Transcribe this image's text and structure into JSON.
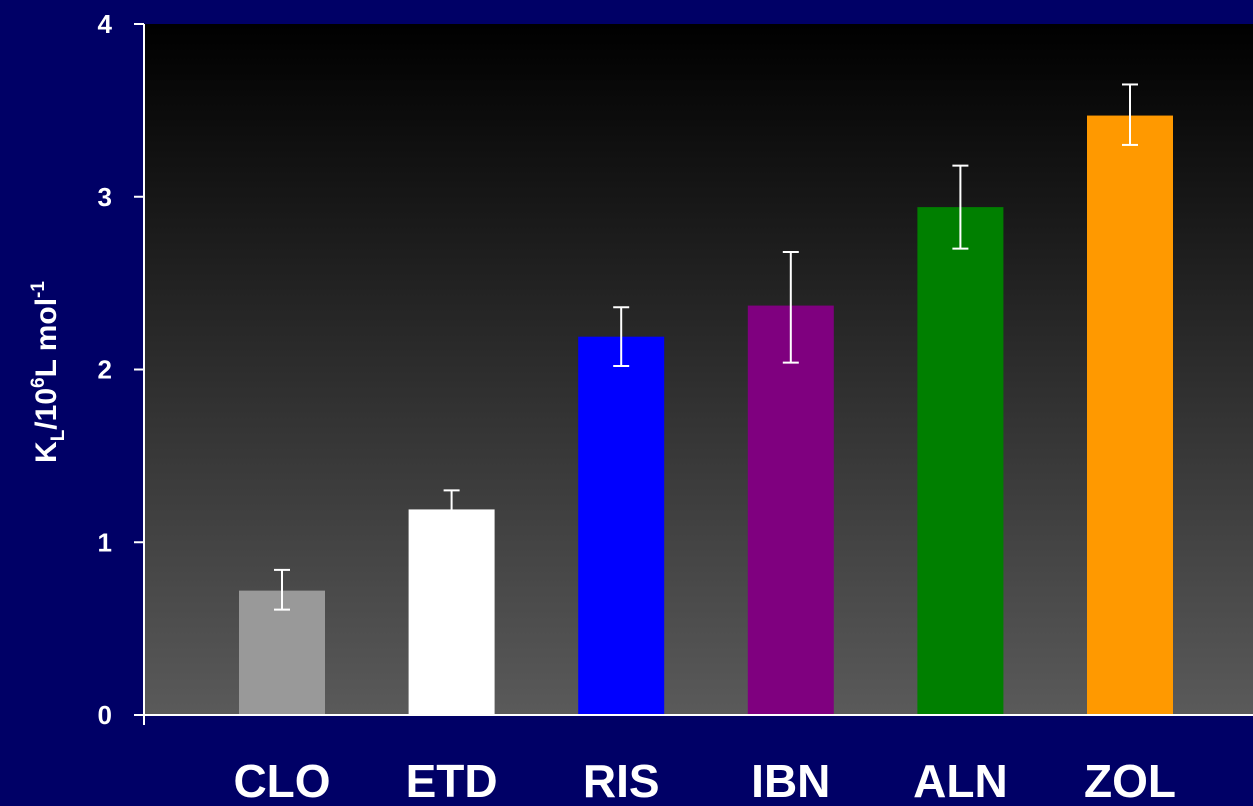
{
  "chart_data": {
    "type": "bar",
    "categories": [
      "CLO",
      "ETD",
      "RIS",
      "IBN",
      "ALN",
      "ZOL"
    ],
    "values": [
      0.72,
      1.19,
      2.19,
      2.37,
      2.94,
      3.47
    ],
    "error_low": [
      0.61,
      1.08,
      2.02,
      2.04,
      2.7,
      3.3
    ],
    "error_high": [
      0.84,
      1.3,
      2.36,
      2.68,
      3.18,
      3.65
    ],
    "colors": [
      "#999999",
      "#ffffff",
      "#0000ff",
      "#7f007f",
      "#007f00",
      "#ff9900"
    ],
    "ylim": [
      0,
      4
    ],
    "yticks": [
      "0",
      "1",
      "2",
      "3",
      "4"
    ],
    "ylabel": {
      "k": "K",
      "k_sub": "L",
      "mid": "/10",
      "exp": "6",
      "unit": "L mol",
      "unit_exp": "-1"
    },
    "title": "",
    "xlabel": "",
    "grid": false,
    "legend": "none",
    "plot_background": "gradient dark-to-gray",
    "error_bar_color": "#ffffff"
  }
}
